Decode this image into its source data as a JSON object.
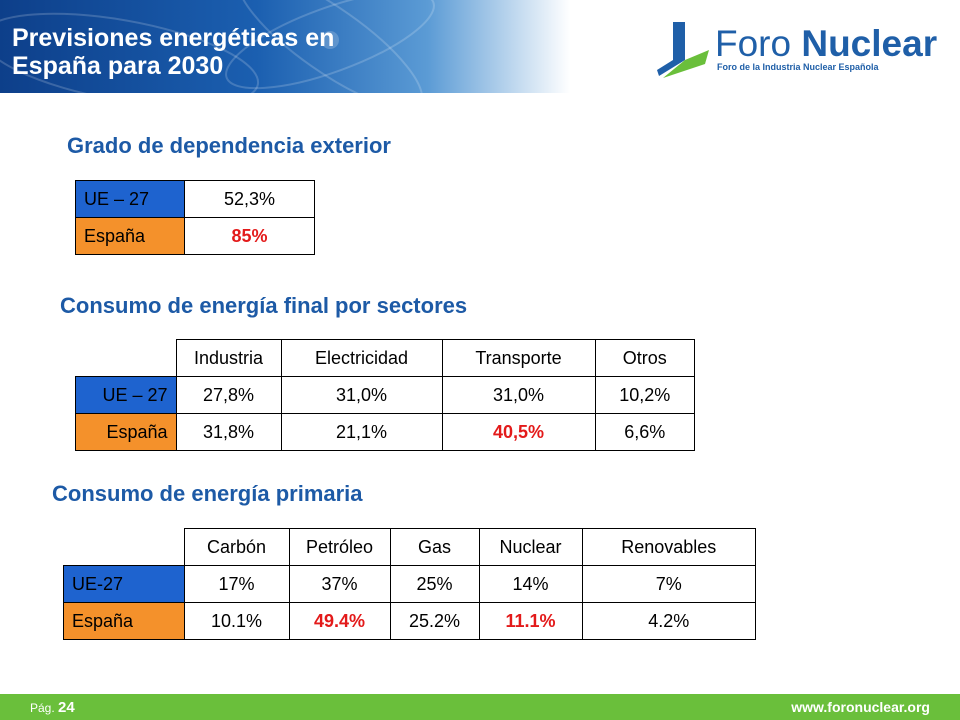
{
  "header": {
    "title_line1": "Previsiones energéticas en",
    "title_line2": "España para 2030"
  },
  "logo": {
    "name_light": "Foro ",
    "name_bold": "Nuclear",
    "tagline": "Foro de la Industria Nuclear Española",
    "brand_color": "#1f5fa8"
  },
  "colors": {
    "ue_row": "#1e63cf",
    "espana_row": "#f4912b",
    "highlight": "#e31a1a",
    "section_title": "#1d5aa6",
    "footer": "#6abf3b"
  },
  "dependencia": {
    "title": "Grado de dependencia exterior",
    "rows": [
      {
        "label": "UE – 27",
        "value": "52,3%"
      },
      {
        "label": "España",
        "value": "85%"
      }
    ]
  },
  "final": {
    "title": "Consumo de energía final por sectores",
    "headers": [
      "Industria",
      "Electricidad",
      "Transporte",
      "Otros"
    ],
    "rows": [
      {
        "label": "UE – 27",
        "values": [
          "27,8%",
          "31,0%",
          "31,0%",
          "10,2%"
        ]
      },
      {
        "label": "España",
        "values": [
          "31,8%",
          "21,1%",
          "40,5%",
          "6,6%"
        ]
      }
    ]
  },
  "primaria": {
    "title": "Consumo de energía primaria",
    "headers": [
      "Carbón",
      "Petróleo",
      "Gas",
      "Nuclear",
      "Renovables"
    ],
    "rows": [
      {
        "label": "UE-27",
        "values": [
          "17%",
          "37%",
          "25%",
          "14%",
          "7%"
        ]
      },
      {
        "label": "España",
        "values": [
          "10.1%",
          "49.4%",
          "25.2%",
          "11.1%",
          "4.2%"
        ]
      }
    ]
  },
  "footer": {
    "page_label": "Pág.",
    "page_number": "24",
    "url": "www.foronuclear.org"
  }
}
